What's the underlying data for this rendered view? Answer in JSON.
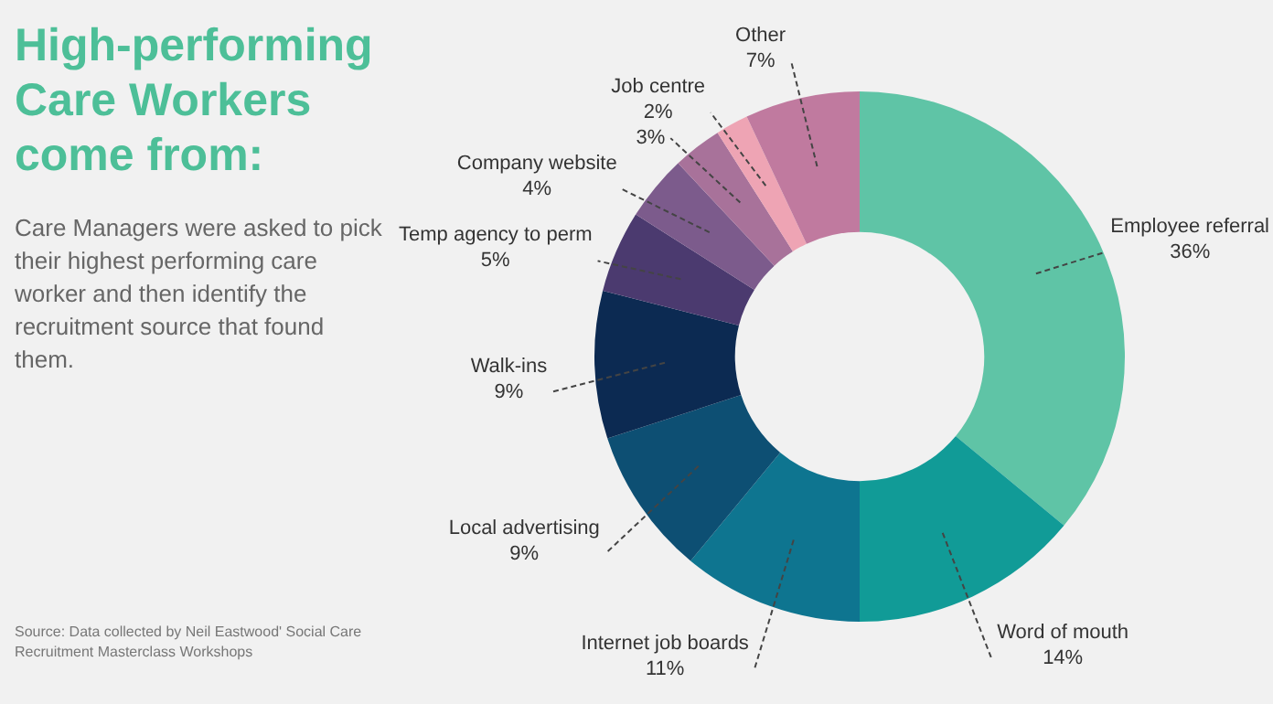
{
  "chart_data": {
    "type": "donut",
    "title": "High-performing Care Workers come from:",
    "subtitle": "Care Managers were asked to pick their highest performing care worker and then identify the recruitment source that found them.",
    "annotations": [
      "Source: Data collected by Neil Eastwood' Social Care Recruitment Masterclass Workshops"
    ],
    "categories": [
      "Employee referral",
      "Word of mouth",
      "Internet job boards",
      "Local advertising",
      "Walk-ins",
      "Temp agency to perm",
      "Company website",
      null,
      "Job centre",
      "Other"
    ],
    "values": [
      36,
      14,
      11,
      9,
      9,
      5,
      4,
      3,
      2,
      7
    ],
    "value_labels": [
      "36%",
      "14%",
      "11%",
      "9%",
      "9%",
      "5%",
      "4%",
      "3%",
      "2%",
      "7%"
    ],
    "colors": [
      "#5fc4a6",
      "#119b97",
      "#0e7590",
      "#0d4f73",
      "#0c2a52",
      "#4b3a6f",
      "#7c5b8c",
      "#a8729a",
      "#eea4b4",
      "#c07a9f"
    ]
  }
}
